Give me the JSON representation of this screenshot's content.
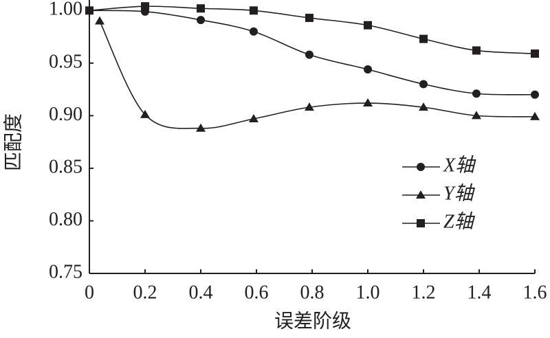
{
  "chart_data": {
    "type": "line",
    "x_label": "误差阶级",
    "y_label": "匹配度",
    "xlim": [
      0,
      1.6
    ],
    "ylim": [
      0.75,
      1.01
    ],
    "xticks": [
      0,
      0.2,
      0.4,
      0.6,
      0.8,
      {
        "value": 1,
        "label": "1.0"
      },
      1.2,
      1.4,
      1.6
    ],
    "yticks": [
      {
        "value": 0.75,
        "label": "0.75"
      },
      {
        "value": 0.8,
        "label": "0.80"
      },
      0.85,
      {
        "value": 0.9,
        "label": "0.90"
      },
      0.95,
      {
        "value": 1,
        "label": "1.00"
      }
    ],
    "legend": "right",
    "series": [
      {
        "name": "X轴",
        "color": "#231f20",
        "marker": "circle",
        "x": [
          0,
          0.2,
          0.4,
          0.59,
          0.79,
          1.0,
          1.2,
          1.39,
          1.6
        ],
        "values": [
          1.0,
          0.999,
          0.991,
          0.98,
          0.958,
          0.944,
          0.93,
          0.921,
          0.92
        ]
      },
      {
        "name": "Y轴",
        "color": "#231f20",
        "marker": "triangle",
        "x": [
          0.037,
          0.2,
          0.4,
          0.59,
          0.79,
          1.0,
          1.2,
          1.39,
          1.6
        ],
        "values": [
          0.99,
          0.901,
          0.888,
          0.897,
          0.908,
          0.912,
          0.908,
          0.9,
          0.899
        ]
      },
      {
        "name": "Z轴",
        "color": "#231f20",
        "marker": "square",
        "x": [
          0,
          0.2,
          0.4,
          0.59,
          0.79,
          1.0,
          1.2,
          1.39,
          1.6
        ],
        "values": [
          1.0,
          1.004,
          1.002,
          1.0,
          0.993,
          0.986,
          0.973,
          0.962,
          0.959
        ]
      }
    ]
  }
}
